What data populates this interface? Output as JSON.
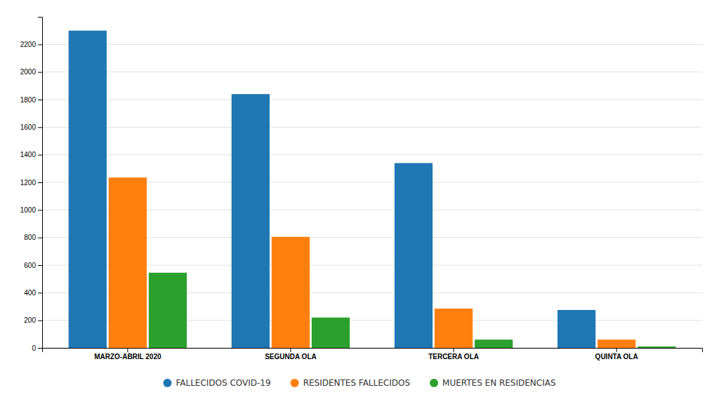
{
  "chart_data": {
    "type": "bar",
    "categories": [
      "MARZO-ABRIL 2020",
      "SEGUNDA OLA",
      "TERCERA OLA",
      "QUINTA OLA"
    ],
    "series": [
      {
        "name": "FALLECIDOS COVID-19",
        "values": [
          2300,
          1840,
          1340,
          275
        ]
      },
      {
        "name": "RESIDENTES FALLECIDOS",
        "values": [
          1235,
          805,
          285,
          60
        ]
      },
      {
        "name": "MUERTES EN RESIDENCIAS",
        "values": [
          545,
          220,
          60,
          10
        ]
      }
    ],
    "ylim": [
      0,
      2400
    ],
    "yticks": [
      0,
      200,
      400,
      600,
      800,
      1000,
      1200,
      1400,
      1600,
      1800,
      2000,
      2200
    ],
    "grid": true,
    "legend": "bottom"
  }
}
